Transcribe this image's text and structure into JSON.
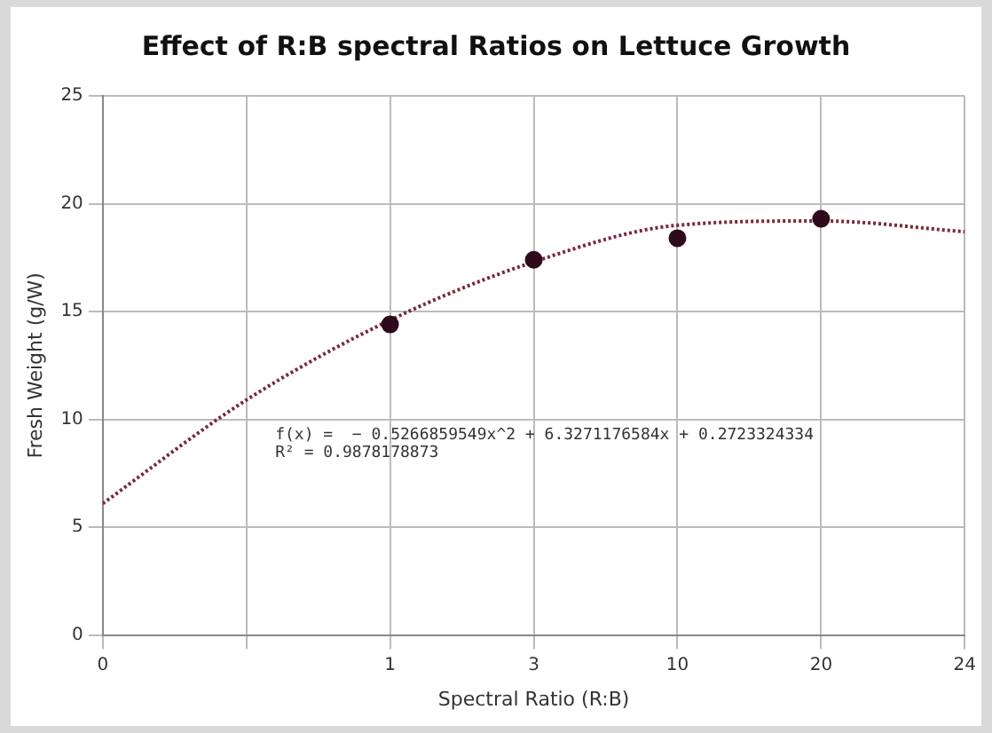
{
  "chart_data": {
    "type": "scatter",
    "title": "Effect of R:B spectral Ratios on Lettuce Growth",
    "xlabel": "Spectral Ratio (R:B)",
    "ylabel": "Fresh Weight (g/W)",
    "categories": [
      "0",
      null,
      "1",
      "3",
      "10",
      "20",
      "24"
    ],
    "series": [
      {
        "color": "#2e0a1c",
        "x": [
          "1",
          "3",
          "10",
          "20"
        ],
        "values": [
          14.4,
          17.4,
          18.4,
          19.3
        ]
      },
      {
        "type": "line",
        "color": "#7a2838",
        "line_style": "dotted",
        "marker": "none",
        "values": [
          6.1,
          10.9,
          14.6,
          17.3,
          19.0,
          19.2,
          18.7
        ]
      }
    ],
    "ylim": [
      0,
      25
    ],
    "yticks": [
      0,
      5,
      10,
      15,
      20,
      25
    ],
    "grid": true,
    "marker": "circle",
    "annotations": [
      "f(x) =  − 0.5266859549x^2 + 6.3271176584x + 0.2723324334",
      "R² = 0.9878178873"
    ]
  }
}
